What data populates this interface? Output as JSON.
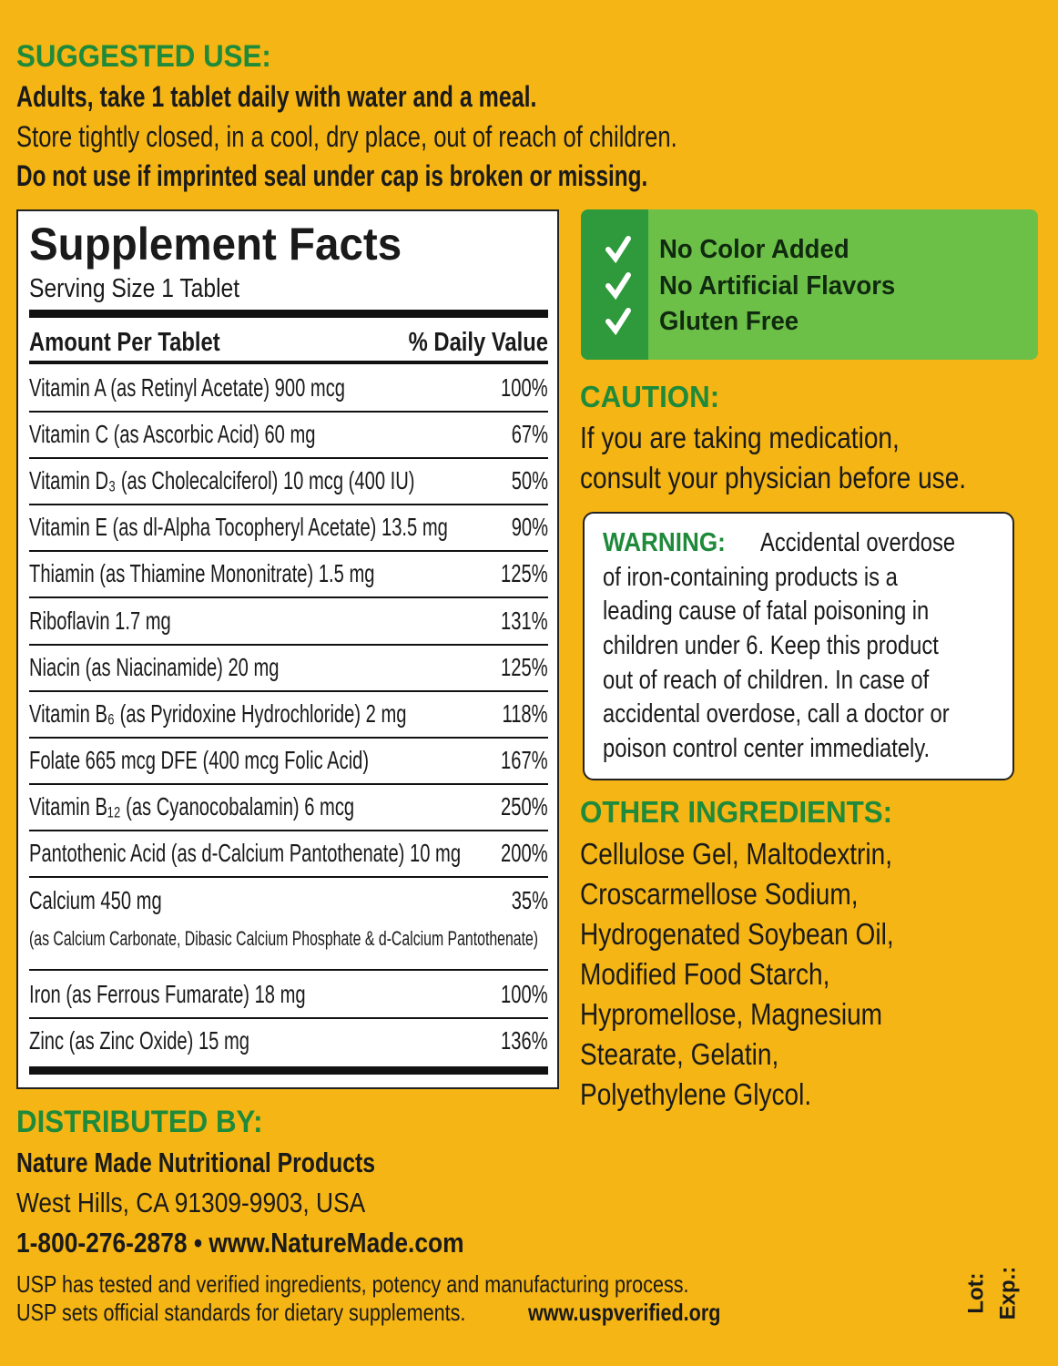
{
  "suggested_use": {
    "heading": "SUGGESTED USE:",
    "lines": [
      "Adults, take 1 tablet daily with water and a meal.",
      "Store tightly closed, in a cool, dry place, out of reach of children.",
      "Do not use if imprinted seal under cap is broken or missing."
    ]
  },
  "supplement_facts": {
    "title": "Supplement Facts",
    "serving_size": "Serving Size 1 Tablet",
    "header": [
      "Amount Per Tablet",
      "% Daily Value"
    ],
    "rows": [
      {
        "name": "Vitamin A (as Retinyl Acetate) 900 mcg",
        "dv": "100%"
      },
      {
        "name": "Vitamin C (as Ascorbic Acid) 60 mg",
        "dv": "67%"
      },
      {
        "name": "Vitamin D₃ (as Cholecalciferol) 10 mcg (400 IU)",
        "dv": "50%"
      },
      {
        "name": "Vitamin E (as dl-Alpha Tocopheryl Acetate) 13.5 mg",
        "dv": "90%"
      },
      {
        "name": "Thiamin (as Thiamine Mononitrate) 1.5 mg",
        "dv": "125%"
      },
      {
        "name": "Riboflavin 1.7 mg",
        "dv": "131%"
      },
      {
        "name": "Niacin (as Niacinamide) 20 mg",
        "dv": "125%"
      },
      {
        "name": "Vitamin B₆ (as Pyridoxine Hydrochloride) 2 mg",
        "dv": "118%"
      },
      {
        "name": "Folate 665 mcg DFE (400 mcg Folic Acid)",
        "dv": "167%"
      },
      {
        "name": "Vitamin B₁₂ (as Cyanocobalamin) 6 mcg",
        "dv": "250%"
      },
      {
        "name": "Pantothenic Acid (as d-Calcium Pantothenate) 10 mg",
        "dv": "200%"
      },
      {
        "name": "Calcium 450 mg",
        "dv": "35%",
        "note": "(as Calcium Carbonate, Dibasic Calcium Phosphate & d-Calcium Pantothenate)"
      },
      {
        "name": "Iron (as Ferrous Fumarate) 18 mg",
        "dv": "100%"
      },
      {
        "name": "Zinc (as Zinc Oxide) 15 mg",
        "dv": "136%"
      }
    ]
  },
  "claims": [
    "No Color Added",
    "No Artificial Flavors",
    "Gluten Free"
  ],
  "caution": {
    "heading": "CAUTION:",
    "lines": [
      "If you are taking medication,",
      "consult your physician before use."
    ]
  },
  "warning": {
    "label": "WARNING:",
    "lines": [
      "Accidental overdose",
      "of iron-containing products is a",
      "leading cause of fatal poisoning in",
      "children under 6. Keep this product",
      "out of reach of children. In case of",
      "accidental overdose, call a doctor or",
      "poison control center immediately."
    ]
  },
  "other_ingredients": {
    "heading": "OTHER INGREDIENTS:",
    "lines": [
      "Cellulose Gel, Maltodextrin,",
      "Croscarmellose Sodium,",
      "Hydrogenated Soybean Oil,",
      "Modified Food Starch,",
      "Hypromellose, Magnesium",
      "Stearate, Gelatin,",
      "Polyethylene Glycol."
    ]
  },
  "distributed": {
    "heading": "DISTRIBUTED BY:",
    "company": "Nature Made Nutritional Products",
    "address": "West Hills, CA 91309-9903, USA",
    "contact": "1-800-276-2878 • www.NatureMade.com"
  },
  "usp": {
    "line1": "USP has tested and verified ingredients, potency and manufacturing process.",
    "line2_text": "USP sets official standards for dietary supplements.",
    "line2_url": "www.uspverified.org"
  },
  "lot": "Lot:",
  "exp": "Exp.:"
}
